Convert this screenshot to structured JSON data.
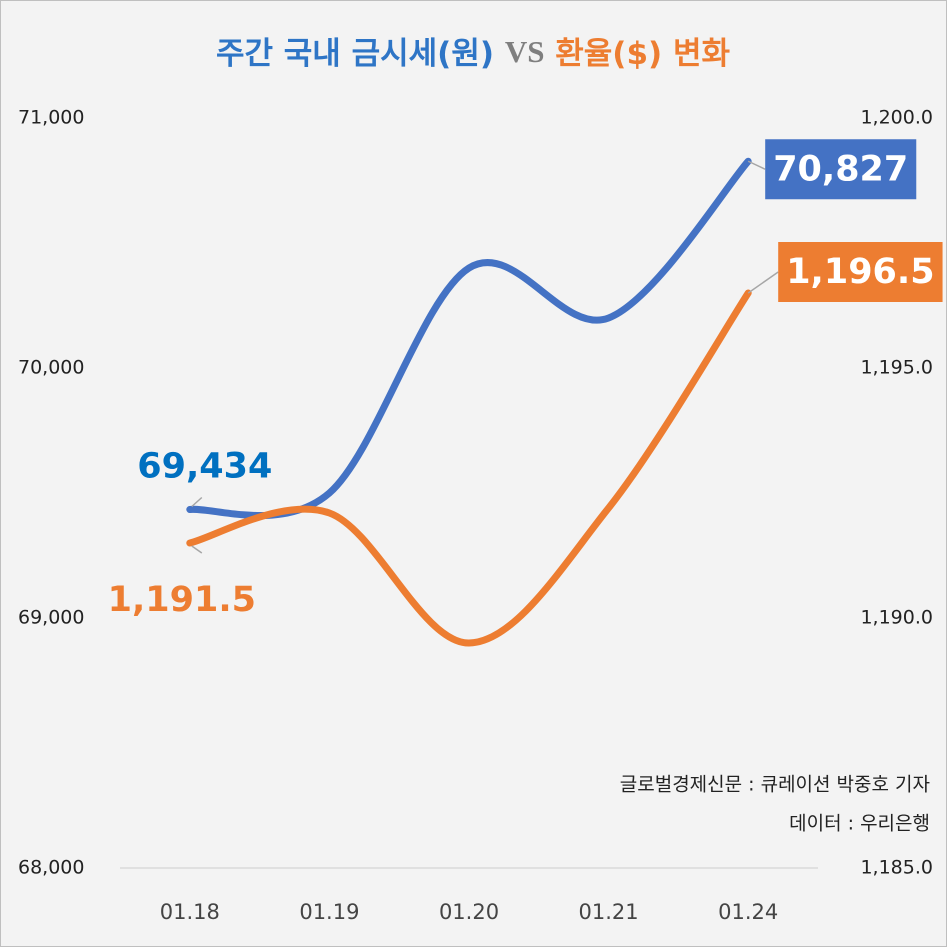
{
  "chart_data": {
    "type": "line",
    "title_parts": [
      {
        "text": "주간 국내 금시세(원)",
        "color": "#2e75c6"
      },
      {
        "text": "VS",
        "color": "#7f7f7f"
      },
      {
        "text": "환율($) 변화",
        "color": "#ed7d31"
      }
    ],
    "categories": [
      "01.18",
      "01.19",
      "01.20",
      "01.21",
      "01.24"
    ],
    "series": [
      {
        "name": "금시세(원)",
        "color": "#4472c4",
        "label_color": "#0070c0",
        "axis": "y",
        "values": [
          69434,
          69500,
          70400,
          70200,
          70827
        ],
        "value_labels": [
          "69,434",
          null,
          null,
          null,
          "70,827"
        ]
      },
      {
        "name": "환율($)",
        "color": "#ed7d31",
        "label_color": "#ed7d31",
        "axis": "y2",
        "values": [
          1191.5,
          1192.1,
          1189.5,
          1192.2,
          1196.5
        ],
        "value_labels": [
          "1,191.5",
          null,
          null,
          null,
          "1,196.5"
        ]
      }
    ],
    "ylim": [
      68000,
      71000
    ],
    "yticks": [
      {
        "value": 68000,
        "label": "68,000"
      },
      {
        "value": 69000,
        "label": "69,000"
      },
      {
        "value": 70000,
        "label": "70,000"
      },
      {
        "value": 71000,
        "label": "71,000"
      }
    ],
    "y2lim": [
      1185,
      1200
    ],
    "y2ticks": [
      {
        "value": 1185,
        "label": "1,185.0"
      },
      {
        "value": 1190,
        "label": "1,190.0"
      },
      {
        "value": 1195,
        "label": "1,195.0"
      },
      {
        "value": 1200,
        "label": "1,200.0"
      }
    ],
    "credits": [
      "글로벌경제신문 : 큐레이션 박중호 기자",
      "데이터 : 우리은행"
    ]
  }
}
